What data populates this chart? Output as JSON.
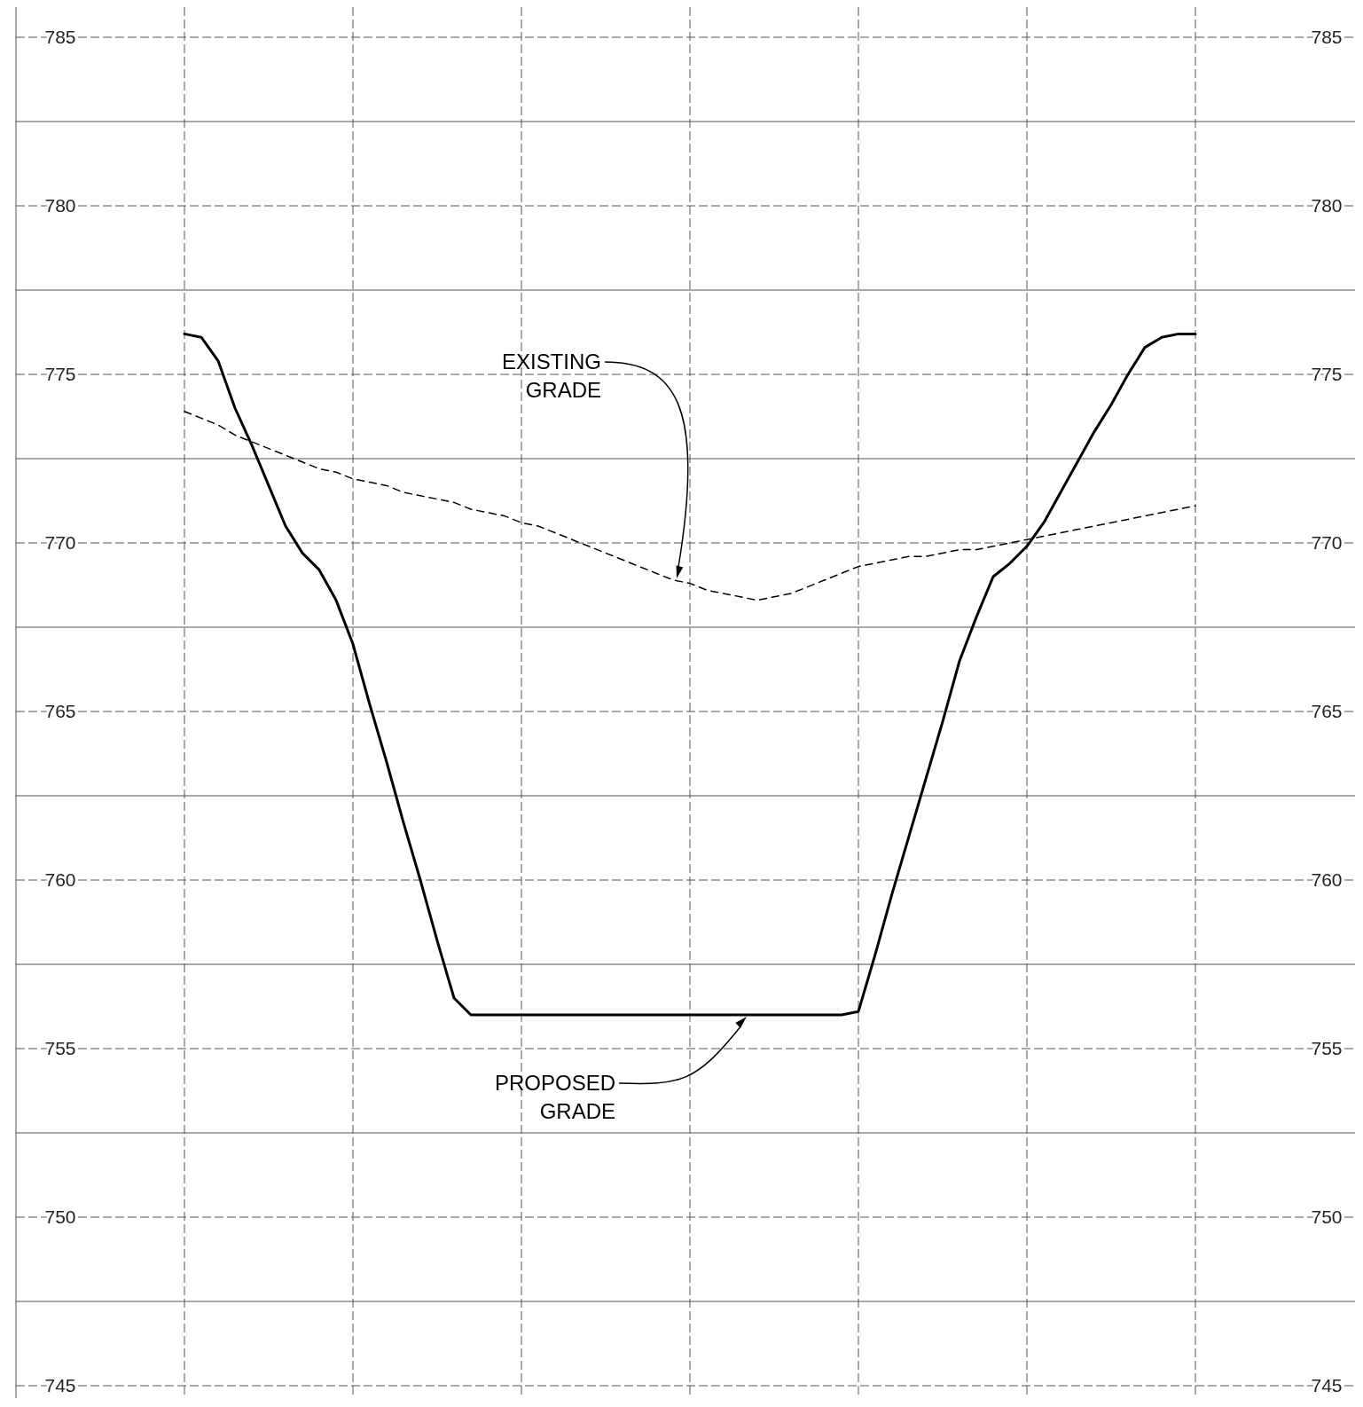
{
  "chart_data": {
    "type": "line",
    "categories": [
      null,
      null,
      null,
      null,
      null,
      null,
      null,
      null,
      null,
      null,
      null,
      null,
      null,
      null,
      null,
      null,
      null,
      null,
      null,
      null,
      null,
      null,
      null,
      null,
      null,
      null,
      null,
      null,
      null,
      null,
      null,
      null,
      null,
      null,
      null,
      null,
      null,
      null,
      null,
      null,
      null,
      null,
      null,
      null,
      null,
      null,
      null,
      null,
      null,
      null,
      null,
      null,
      null,
      null,
      null,
      null,
      null,
      null,
      null,
      null,
      null,
      null,
      null,
      null,
      null,
      null,
      null,
      null,
      null,
      null,
      null,
      null,
      null,
      null,
      null,
      null,
      null,
      null,
      null,
      null
    ],
    "series": [
      {
        "color": "#000000",
        "line_style": "solid",
        "values": [
          null,
          null,
          null,
          null,
          null,
          null,
          null,
          null,
          null,
          null,
          776.2,
          776.1,
          775.4,
          774.0,
          772.9,
          771.7,
          770.5,
          769.7,
          769.2,
          768.3,
          767.0,
          765.2,
          763.5,
          761.7,
          760.0,
          758.2,
          756.5,
          756.0,
          756.0,
          756.0,
          756.0,
          756.0,
          756.0,
          756.0,
          756.0,
          756.0,
          756.0,
          756.0,
          756.0,
          756.0,
          756.0,
          756.0,
          756.0,
          756.0,
          756.0,
          756.0,
          756.0,
          756.0,
          756.0,
          756.0,
          756.1,
          757.8,
          759.6,
          761.3,
          763.0,
          764.7,
          766.5,
          767.8,
          769.0,
          769.4,
          769.9,
          770.6,
          771.5,
          772.4,
          773.3,
          774.1,
          775.0,
          775.8,
          776.1,
          776.2,
          776.2,
          null,
          null,
          null,
          null,
          null,
          null,
          null,
          null,
          null
        ]
      },
      {
        "color": "#000000",
        "line_style": "dashed",
        "values": [
          null,
          null,
          null,
          null,
          null,
          null,
          null,
          null,
          null,
          null,
          773.9,
          773.7,
          773.5,
          773.2,
          773.0,
          772.8,
          772.6,
          772.4,
          772.2,
          772.1,
          771.9,
          771.8,
          771.7,
          771.5,
          771.4,
          771.3,
          771.2,
          771.0,
          770.9,
          770.8,
          770.6,
          770.5,
          770.3,
          770.1,
          769.9,
          769.7,
          769.5,
          769.3,
          769.1,
          768.9,
          768.8,
          768.6,
          768.5,
          768.4,
          768.3,
          768.4,
          768.5,
          768.7,
          768.9,
          769.1,
          769.3,
          769.4,
          769.5,
          769.6,
          769.6,
          769.7,
          769.8,
          769.8,
          769.9,
          770.0,
          770.1,
          770.2,
          770.3,
          770.4,
          770.5,
          770.6,
          770.7,
          770.8,
          770.9,
          771.0,
          771.1,
          null,
          null,
          null,
          null,
          null,
          null,
          null,
          null,
          null
        ]
      }
    ],
    "ylim": [
      745,
      785
    ],
    "yticks": [
      745,
      {
        "value": 747.5,
        "label": null
      },
      750,
      {
        "value": 752.5,
        "label": null
      },
      755,
      {
        "value": 757.5,
        "label": null
      },
      760,
      {
        "value": 762.5,
        "label": null
      },
      765,
      {
        "value": 767.5,
        "label": null
      },
      770,
      {
        "value": 772.5,
        "label": null
      },
      775,
      {
        "value": 777.5,
        "label": null
      },
      780,
      {
        "value": 782.5,
        "label": null
      },
      785
    ],
    "y2lim": [
      745,
      785
    ],
    "y2ticks": [
      745,
      750,
      755,
      760,
      765,
      770,
      775,
      780,
      785
    ],
    "grid": true,
    "marker": "none",
    "annotations": [
      "EXISTING\nGRADE",
      "PROPOSED\nGRADE"
    ]
  }
}
